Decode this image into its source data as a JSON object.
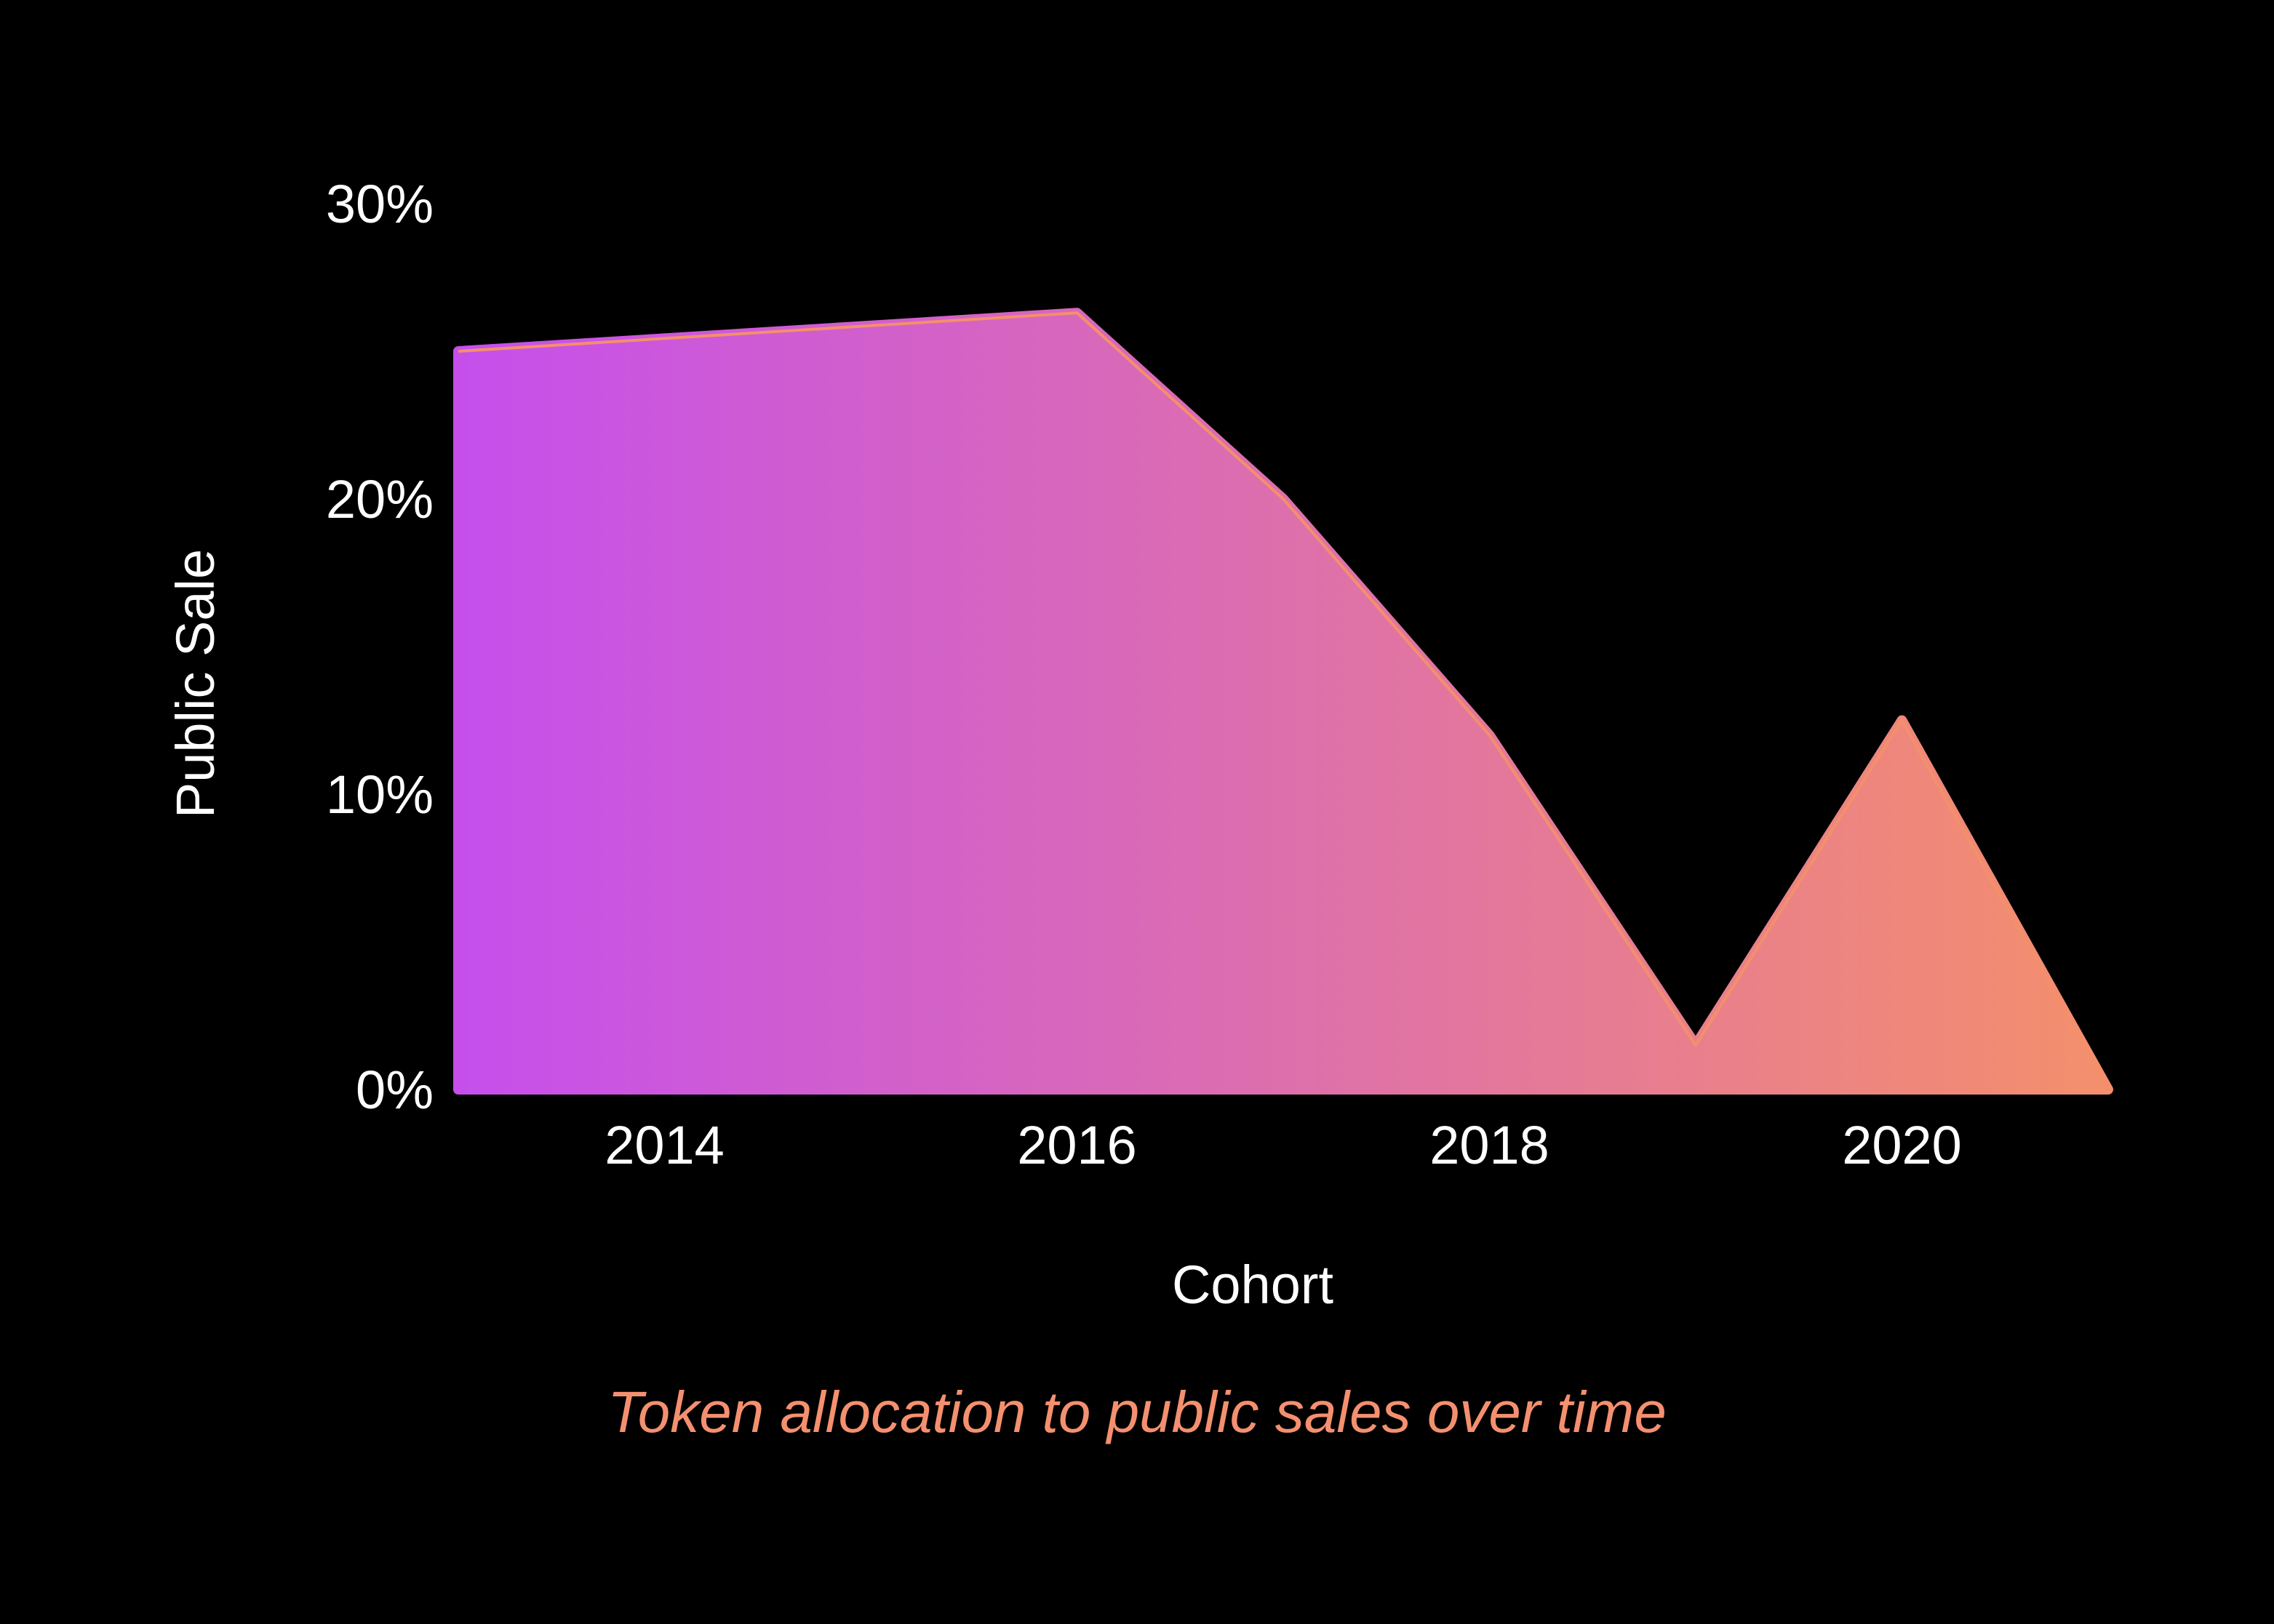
{
  "chart_data": {
    "type": "area",
    "caption": "Token allocation to public sales over time",
    "xlabel": "Cohort",
    "ylabel": "Public Sale",
    "x": [
      2013,
      2016,
      2017,
      2018,
      2019,
      2020,
      2021
    ],
    "series": [
      {
        "values": [
          25.0,
          26.3,
          20.0,
          12.0,
          1.5,
          12.5,
          0.0
        ]
      }
    ],
    "xlim": [
      2013,
      2021
    ],
    "ylim": [
      0,
      30
    ],
    "x_ticks": [
      2014,
      2016,
      2018,
      2020
    ],
    "x_tick_labels": [
      "2014",
      "2016",
      "2018",
      "2020"
    ],
    "y_ticks": [
      0,
      10,
      20,
      30
    ],
    "y_tick_labels": [
      "0%",
      "10%",
      "20%",
      "30%"
    ],
    "grid": false,
    "legend": "none",
    "colors": {
      "background": "#000000",
      "gradient_start": "#c64fec",
      "gradient_end": "#f48f6c",
      "caption": "#f4906f",
      "text": "#ffffff"
    }
  }
}
